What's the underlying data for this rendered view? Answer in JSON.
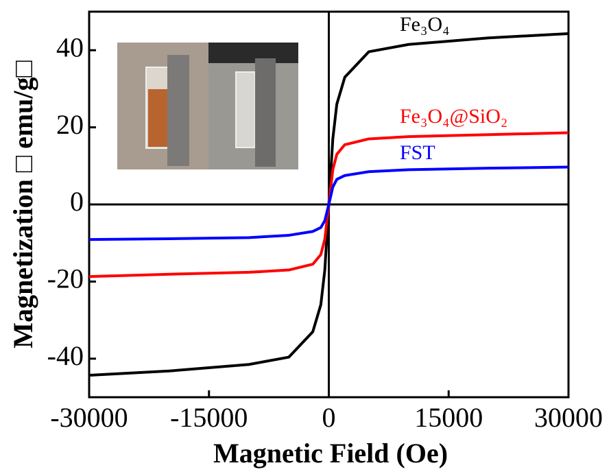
{
  "chart_data": {
    "type": "line",
    "xlabel": "Magnetic Field (Oe)",
    "ylabel": "Magnetization □ emu/g□",
    "x": [
      -30000,
      -20000,
      -10000,
      -5000,
      -2000,
      -1000,
      -500,
      0,
      500,
      1000,
      2000,
      5000,
      10000,
      20000,
      30000
    ],
    "series": [
      {
        "name": "Fe₃O₄",
        "color": "#000000",
        "values": [
          -44.3,
          -43.2,
          -41.5,
          -39.6,
          -33,
          -26,
          -17,
          0,
          17,
          26,
          33,
          39.6,
          41.5,
          43.2,
          44.3
        ]
      },
      {
        "name": "Fe₃O₄@SiO₂",
        "color": "#ff0000",
        "values": [
          -18.7,
          -18.1,
          -17.6,
          -17,
          -15.5,
          -13,
          -9,
          0,
          9,
          13,
          15.5,
          17,
          17.6,
          18.1,
          18.6
        ]
      },
      {
        "name": "FST",
        "color": "#0000ff",
        "values": [
          -9.1,
          -8.9,
          -8.6,
          -8,
          -7,
          -6,
          -4.2,
          0,
          4.5,
          6.5,
          7.5,
          8.5,
          9,
          9.4,
          9.7
        ]
      }
    ],
    "xlim": [
      -30000,
      30000
    ],
    "xticks": [
      -30000,
      -15000,
      0,
      15000,
      30000
    ],
    "ylim": [
      -50,
      50
    ],
    "yticks": [
      -40,
      -20,
      0,
      20,
      40
    ]
  }
}
